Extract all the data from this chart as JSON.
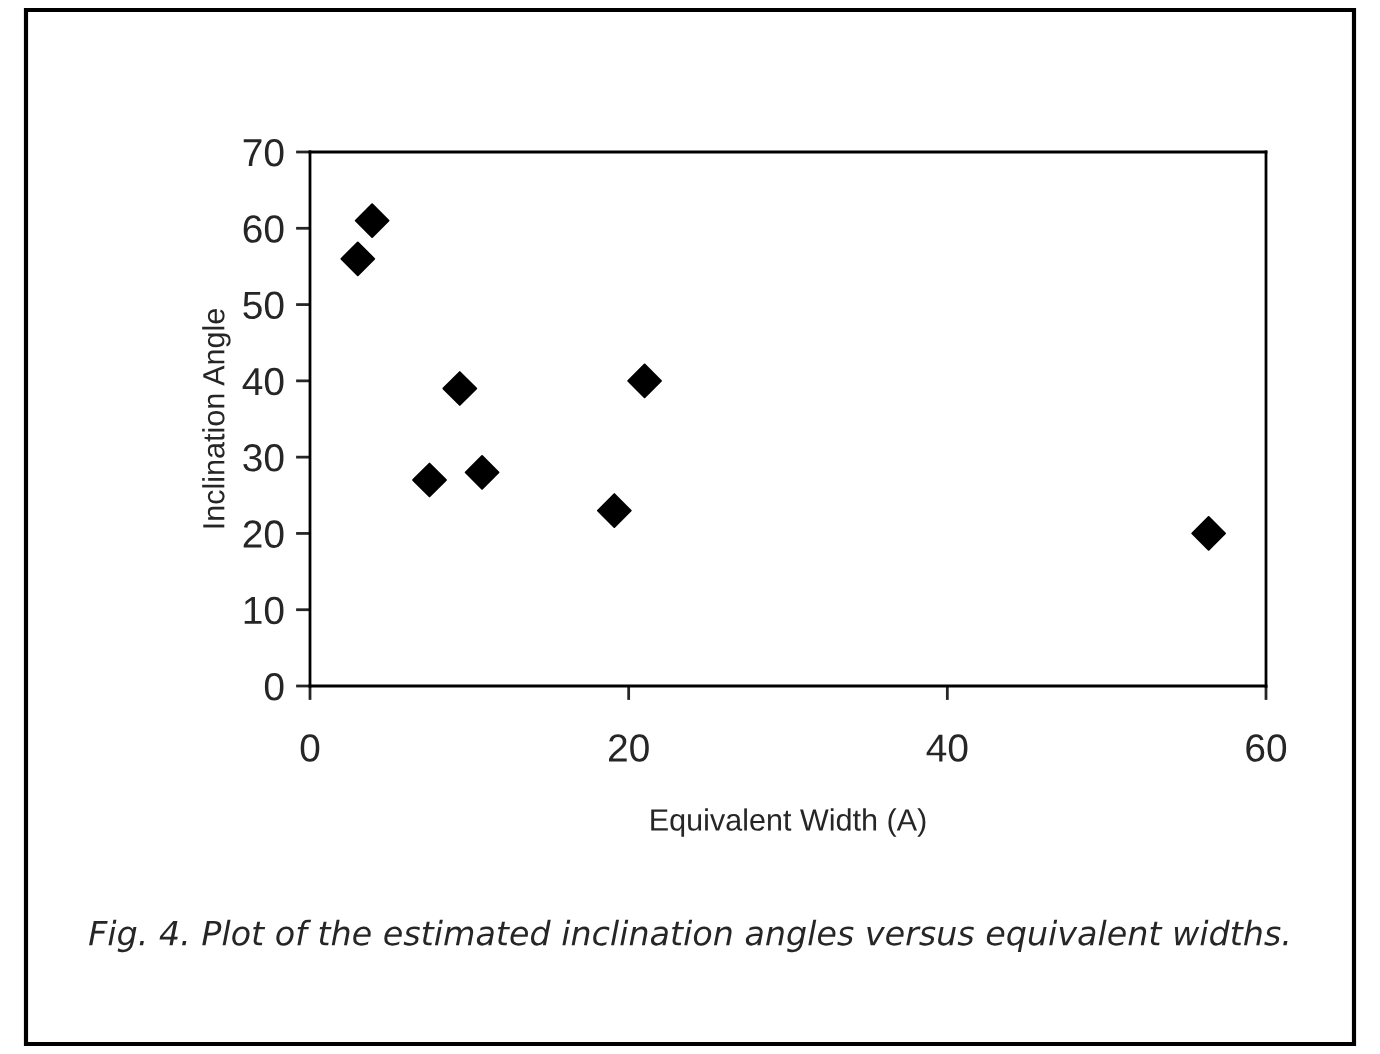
{
  "chart_data": {
    "type": "scatter",
    "xlabel": "Equivalent Width (A)",
    "ylabel": "Inclination Angle",
    "x": [
      3.0,
      3.9,
      7.5,
      9.4,
      10.8,
      19.1,
      21.0,
      56.4
    ],
    "series": [
      {
        "color": "#000000",
        "values": [
          56,
          61,
          27,
          39,
          28,
          23,
          40,
          20
        ]
      }
    ],
    "marker": "diamond",
    "xlim": [
      0,
      60
    ],
    "xticks": [
      0,
      20,
      40,
      60
    ],
    "ylim": [
      0,
      70
    ],
    "yticks": [
      0,
      10,
      20,
      30,
      40,
      50,
      60,
      70
    ],
    "grid": false,
    "legend": false,
    "annotations": [
      "Fig. 4. Plot of the estimated inclination angles versus equivalent widths."
    ]
  }
}
